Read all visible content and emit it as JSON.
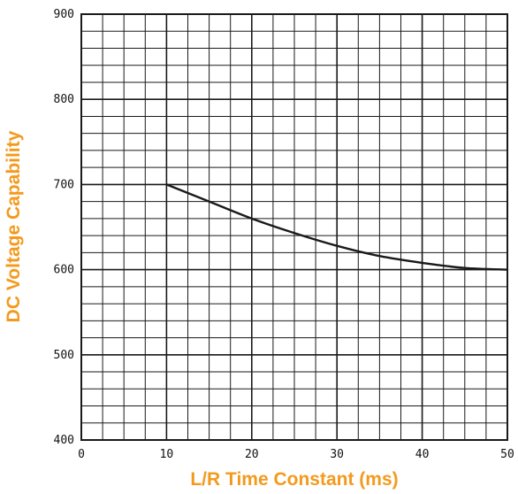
{
  "chart_data": {
    "type": "line",
    "title": "",
    "xlabel": "L/R Time Constant (ms)",
    "ylabel": "DC Voltage Capability",
    "xlim": [
      0,
      50
    ],
    "ylim": [
      400,
      900
    ],
    "x_ticks": [
      0,
      10,
      20,
      30,
      40,
      50
    ],
    "y_ticks": [
      400,
      500,
      600,
      700,
      800,
      900
    ],
    "x_tick_labels": [
      "0",
      "10",
      "20",
      "30",
      "40",
      "50"
    ],
    "y_tick_labels": [
      "400",
      "500",
      "600",
      "700",
      "800",
      "900"
    ],
    "grid": true,
    "grid_minor_step_x": 2.5,
    "grid_minor_step_y": 20,
    "series": [
      {
        "name": "",
        "x": [
          10,
          15,
          20,
          25,
          30,
          35,
          40,
          45,
          50
        ],
        "y": [
          700,
          680,
          660,
          643,
          628,
          616,
          608,
          602,
          600
        ]
      }
    ],
    "colors": {
      "axis_title": "#f39a1d",
      "line": "#1a1a1a",
      "grid": "#1a1a1a"
    }
  }
}
